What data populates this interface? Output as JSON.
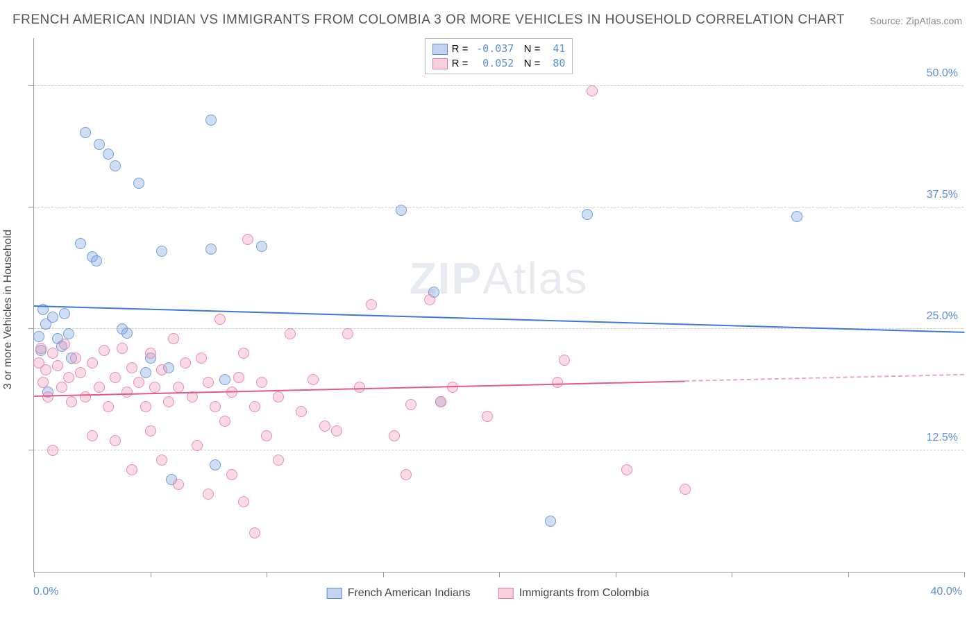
{
  "title": "FRENCH AMERICAN INDIAN VS IMMIGRANTS FROM COLOMBIA 3 OR MORE VEHICLES IN HOUSEHOLD CORRELATION CHART",
  "source": "Source: ZipAtlas.com",
  "watermark_prefix": "ZIP",
  "watermark_suffix": "Atlas",
  "chart": {
    "type": "scatter",
    "ylabel": "3 or more Vehicles in Household",
    "xlim": [
      0,
      40
    ],
    "ylim": [
      0,
      55
    ],
    "xticks": [
      0,
      5,
      10,
      15,
      20,
      25,
      30,
      35,
      40
    ],
    "yticks": [
      12.5,
      25.0,
      37.5,
      50.0
    ],
    "ytick_labels": [
      "12.5%",
      "25.0%",
      "37.5%",
      "50.0%"
    ],
    "xmin_label": "0.0%",
    "xmax_label": "40.0%",
    "grid_color": "#cccccc",
    "background_color": "#ffffff",
    "marker_size": 16,
    "series": [
      {
        "name": "French American Indians",
        "color_fill": "rgba(120,160,220,0.35)",
        "color_stroke": "#5b8fd6",
        "R": "-0.037",
        "N": "41",
        "trend": {
          "y_at_x0": 27.3,
          "y_at_x40": 24.6,
          "x_draw_end": 40
        },
        "points": [
          [
            0.2,
            24.2
          ],
          [
            0.3,
            22.8
          ],
          [
            0.4,
            27.0
          ],
          [
            0.5,
            25.5
          ],
          [
            0.6,
            18.5
          ],
          [
            0.8,
            26.2
          ],
          [
            1.0,
            24.0
          ],
          [
            1.2,
            23.2
          ],
          [
            1.3,
            26.6
          ],
          [
            1.5,
            24.5
          ],
          [
            1.6,
            22.0
          ],
          [
            2.0,
            33.8
          ],
          [
            2.2,
            45.2
          ],
          [
            2.5,
            32.4
          ],
          [
            2.7,
            32.0
          ],
          [
            2.8,
            44.0
          ],
          [
            3.2,
            43.0
          ],
          [
            3.5,
            41.8
          ],
          [
            3.8,
            25.0
          ],
          [
            4.0,
            24.6
          ],
          [
            4.5,
            40.0
          ],
          [
            4.8,
            20.5
          ],
          [
            5.0,
            22.0
          ],
          [
            5.5,
            33.0
          ],
          [
            5.8,
            21.0
          ],
          [
            5.9,
            9.5
          ],
          [
            7.6,
            46.5
          ],
          [
            7.6,
            33.2
          ],
          [
            7.8,
            11.0
          ],
          [
            8.2,
            19.8
          ],
          [
            9.8,
            33.5
          ],
          [
            15.8,
            37.2
          ],
          [
            17.2,
            28.8
          ],
          [
            17.5,
            17.5
          ],
          [
            22.2,
            5.2
          ],
          [
            23.8,
            36.8
          ],
          [
            32.8,
            36.6
          ]
        ]
      },
      {
        "name": "Immigrants from Colombia",
        "color_fill": "rgba(240,150,180,0.35)",
        "color_stroke": "#e47aa0",
        "R": "0.052",
        "N": "80",
        "trend": {
          "y_at_x0": 18.0,
          "y_at_x40": 20.2,
          "x_draw_end": 28
        },
        "points": [
          [
            0.2,
            21.5
          ],
          [
            0.3,
            23.0
          ],
          [
            0.4,
            19.5
          ],
          [
            0.5,
            20.8
          ],
          [
            0.6,
            18.0
          ],
          [
            0.8,
            22.5
          ],
          [
            0.8,
            12.5
          ],
          [
            1.0,
            21.2
          ],
          [
            1.2,
            19.0
          ],
          [
            1.3,
            23.4
          ],
          [
            1.5,
            20.0
          ],
          [
            1.6,
            17.5
          ],
          [
            1.8,
            22.0
          ],
          [
            2.0,
            20.5
          ],
          [
            2.2,
            18.0
          ],
          [
            2.5,
            21.5
          ],
          [
            2.5,
            14.0
          ],
          [
            2.8,
            19.0
          ],
          [
            3.0,
            22.8
          ],
          [
            3.2,
            17.0
          ],
          [
            3.5,
            20.0
          ],
          [
            3.5,
            13.5
          ],
          [
            3.8,
            23.0
          ],
          [
            4.0,
            18.5
          ],
          [
            4.2,
            21.0
          ],
          [
            4.2,
            10.5
          ],
          [
            4.5,
            19.5
          ],
          [
            4.8,
            17.0
          ],
          [
            5.0,
            14.5
          ],
          [
            5.0,
            22.5
          ],
          [
            5.2,
            19.0
          ],
          [
            5.5,
            20.8
          ],
          [
            5.5,
            11.5
          ],
          [
            5.8,
            17.5
          ],
          [
            6.0,
            24.0
          ],
          [
            6.2,
            19.0
          ],
          [
            6.2,
            9.0
          ],
          [
            6.5,
            21.5
          ],
          [
            6.8,
            18.0
          ],
          [
            7.0,
            13.0
          ],
          [
            7.2,
            22.0
          ],
          [
            7.5,
            19.5
          ],
          [
            7.5,
            8.0
          ],
          [
            7.8,
            17.0
          ],
          [
            8.0,
            26.0
          ],
          [
            8.2,
            15.5
          ],
          [
            8.5,
            18.5
          ],
          [
            8.5,
            10.0
          ],
          [
            8.8,
            20.0
          ],
          [
            9.0,
            22.5
          ],
          [
            9.0,
            7.2
          ],
          [
            9.2,
            34.2
          ],
          [
            9.5,
            17.0
          ],
          [
            9.5,
            4.0
          ],
          [
            9.8,
            19.5
          ],
          [
            10.0,
            14.0
          ],
          [
            10.5,
            18.0
          ],
          [
            10.5,
            11.5
          ],
          [
            11.0,
            24.5
          ],
          [
            11.5,
            16.5
          ],
          [
            12.0,
            19.8
          ],
          [
            12.5,
            15.0
          ],
          [
            13.0,
            14.5
          ],
          [
            13.5,
            24.5
          ],
          [
            14.0,
            19.0
          ],
          [
            14.5,
            27.5
          ],
          [
            15.5,
            14.0
          ],
          [
            16.0,
            10.0
          ],
          [
            16.2,
            17.2
          ],
          [
            17.0,
            28.0
          ],
          [
            17.5,
            17.5
          ],
          [
            18.0,
            19.0
          ],
          [
            19.5,
            16.0
          ],
          [
            22.5,
            19.5
          ],
          [
            22.8,
            21.8
          ],
          [
            24.0,
            49.5
          ],
          [
            25.5,
            10.5
          ],
          [
            28.0,
            8.5
          ]
        ]
      }
    ]
  }
}
